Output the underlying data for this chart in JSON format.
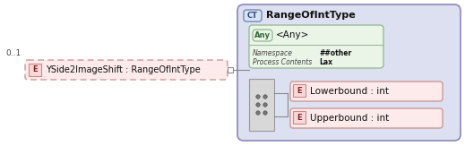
{
  "bg_color": "#ffffff",
  "panel_bg": "#dde0f0",
  "panel_border": "#9090bb",
  "ct_label": "CT",
  "ct_label_bg": "#d8e4f4",
  "ct_label_border": "#7788bb",
  "ct_title": "RangeOfIntType",
  "any_box_bg": "#eaf5e8",
  "any_box_border": "#99bb99",
  "any_label": "Any",
  "any_text": "<Any>",
  "ns_label": "Namespace",
  "ns_value": "##other",
  "pc_label": "Process Contents",
  "pc_value": "Lax",
  "e_badge_bg": "#f8d8d8",
  "e_badge_border": "#cc8888",
  "e_label": "E",
  "elem1_text": "Lowerbound : int",
  "elem2_text": "Upperbound : int",
  "elem1_bg": "#fdeaea",
  "elem1_border": "#cc9999",
  "main_elem_text": "YSide2ImageShift : RangeOfIntType",
  "main_elem_bg": "#fdeaea",
  "main_elem_border": "#cc9999",
  "multiplicity": "0..1",
  "seq_box_bg": "#d8d8d8",
  "seq_box_border": "#999999",
  "line_color": "#888888",
  "connector_sq_bg": "#ffffff",
  "connector_sq_border": "#888888"
}
